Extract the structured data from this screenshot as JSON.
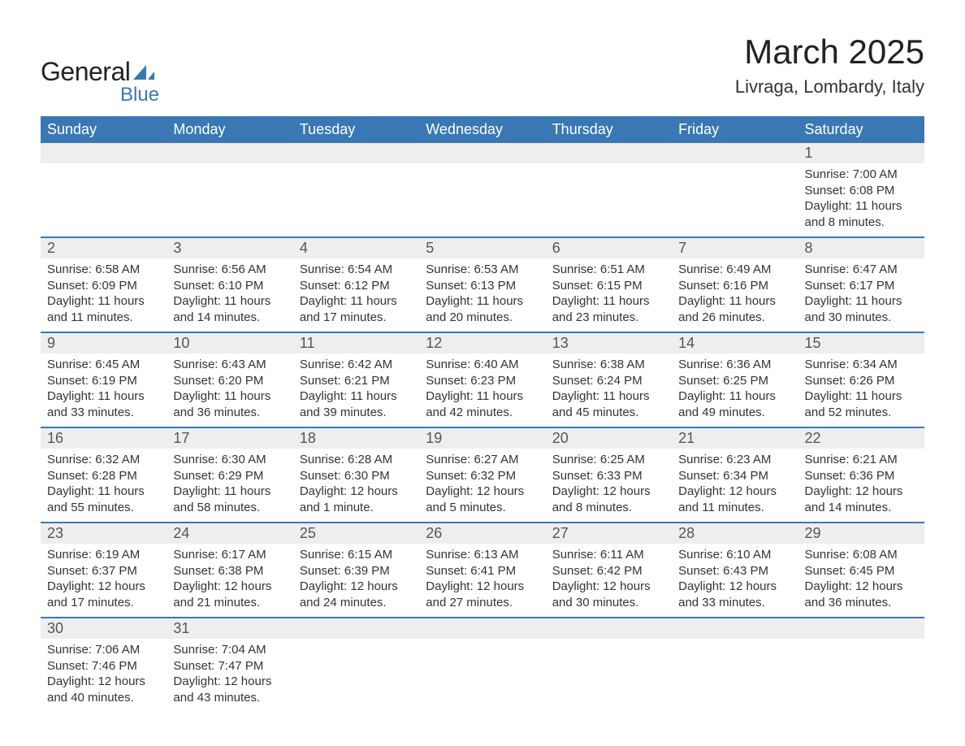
{
  "brand": {
    "main": "General",
    "sub": "Blue",
    "logo_color": "#3a78b5"
  },
  "title": "March 2025",
  "location": "Livraga, Lombardy, Italy",
  "colors": {
    "header_bg": "#3a78b5",
    "header_fg": "#ffffff",
    "daynum_bg": "#eeeeee",
    "border": "#3a78b5",
    "text": "#333333"
  },
  "typography": {
    "body_fontsize": 15,
    "title_fontsize": 42,
    "location_fontsize": 22,
    "header_fontsize": 18
  },
  "weekdays": [
    "Sunday",
    "Monday",
    "Tuesday",
    "Wednesday",
    "Thursday",
    "Friday",
    "Saturday"
  ],
  "weeks": [
    [
      null,
      null,
      null,
      null,
      null,
      null,
      {
        "n": "1",
        "sunrise": "7:00 AM",
        "sunset": "6:08 PM",
        "daylight": "11 hours and 8 minutes."
      }
    ],
    [
      {
        "n": "2",
        "sunrise": "6:58 AM",
        "sunset": "6:09 PM",
        "daylight": "11 hours and 11 minutes."
      },
      {
        "n": "3",
        "sunrise": "6:56 AM",
        "sunset": "6:10 PM",
        "daylight": "11 hours and 14 minutes."
      },
      {
        "n": "4",
        "sunrise": "6:54 AM",
        "sunset": "6:12 PM",
        "daylight": "11 hours and 17 minutes."
      },
      {
        "n": "5",
        "sunrise": "6:53 AM",
        "sunset": "6:13 PM",
        "daylight": "11 hours and 20 minutes."
      },
      {
        "n": "6",
        "sunrise": "6:51 AM",
        "sunset": "6:15 PM",
        "daylight": "11 hours and 23 minutes."
      },
      {
        "n": "7",
        "sunrise": "6:49 AM",
        "sunset": "6:16 PM",
        "daylight": "11 hours and 26 minutes."
      },
      {
        "n": "8",
        "sunrise": "6:47 AM",
        "sunset": "6:17 PM",
        "daylight": "11 hours and 30 minutes."
      }
    ],
    [
      {
        "n": "9",
        "sunrise": "6:45 AM",
        "sunset": "6:19 PM",
        "daylight": "11 hours and 33 minutes."
      },
      {
        "n": "10",
        "sunrise": "6:43 AM",
        "sunset": "6:20 PM",
        "daylight": "11 hours and 36 minutes."
      },
      {
        "n": "11",
        "sunrise": "6:42 AM",
        "sunset": "6:21 PM",
        "daylight": "11 hours and 39 minutes."
      },
      {
        "n": "12",
        "sunrise": "6:40 AM",
        "sunset": "6:23 PM",
        "daylight": "11 hours and 42 minutes."
      },
      {
        "n": "13",
        "sunrise": "6:38 AM",
        "sunset": "6:24 PM",
        "daylight": "11 hours and 45 minutes."
      },
      {
        "n": "14",
        "sunrise": "6:36 AM",
        "sunset": "6:25 PM",
        "daylight": "11 hours and 49 minutes."
      },
      {
        "n": "15",
        "sunrise": "6:34 AM",
        "sunset": "6:26 PM",
        "daylight": "11 hours and 52 minutes."
      }
    ],
    [
      {
        "n": "16",
        "sunrise": "6:32 AM",
        "sunset": "6:28 PM",
        "daylight": "11 hours and 55 minutes."
      },
      {
        "n": "17",
        "sunrise": "6:30 AM",
        "sunset": "6:29 PM",
        "daylight": "11 hours and 58 minutes."
      },
      {
        "n": "18",
        "sunrise": "6:28 AM",
        "sunset": "6:30 PM",
        "daylight": "12 hours and 1 minute."
      },
      {
        "n": "19",
        "sunrise": "6:27 AM",
        "sunset": "6:32 PM",
        "daylight": "12 hours and 5 minutes."
      },
      {
        "n": "20",
        "sunrise": "6:25 AM",
        "sunset": "6:33 PM",
        "daylight": "12 hours and 8 minutes."
      },
      {
        "n": "21",
        "sunrise": "6:23 AM",
        "sunset": "6:34 PM",
        "daylight": "12 hours and 11 minutes."
      },
      {
        "n": "22",
        "sunrise": "6:21 AM",
        "sunset": "6:36 PM",
        "daylight": "12 hours and 14 minutes."
      }
    ],
    [
      {
        "n": "23",
        "sunrise": "6:19 AM",
        "sunset": "6:37 PM",
        "daylight": "12 hours and 17 minutes."
      },
      {
        "n": "24",
        "sunrise": "6:17 AM",
        "sunset": "6:38 PM",
        "daylight": "12 hours and 21 minutes."
      },
      {
        "n": "25",
        "sunrise": "6:15 AM",
        "sunset": "6:39 PM",
        "daylight": "12 hours and 24 minutes."
      },
      {
        "n": "26",
        "sunrise": "6:13 AM",
        "sunset": "6:41 PM",
        "daylight": "12 hours and 27 minutes."
      },
      {
        "n": "27",
        "sunrise": "6:11 AM",
        "sunset": "6:42 PM",
        "daylight": "12 hours and 30 minutes."
      },
      {
        "n": "28",
        "sunrise": "6:10 AM",
        "sunset": "6:43 PM",
        "daylight": "12 hours and 33 minutes."
      },
      {
        "n": "29",
        "sunrise": "6:08 AM",
        "sunset": "6:45 PM",
        "daylight": "12 hours and 36 minutes."
      }
    ],
    [
      {
        "n": "30",
        "sunrise": "7:06 AM",
        "sunset": "7:46 PM",
        "daylight": "12 hours and 40 minutes."
      },
      {
        "n": "31",
        "sunrise": "7:04 AM",
        "sunset": "7:47 PM",
        "daylight": "12 hours and 43 minutes."
      },
      null,
      null,
      null,
      null,
      null
    ]
  ],
  "labels": {
    "sunrise": "Sunrise: ",
    "sunset": "Sunset: ",
    "daylight": "Daylight: "
  }
}
